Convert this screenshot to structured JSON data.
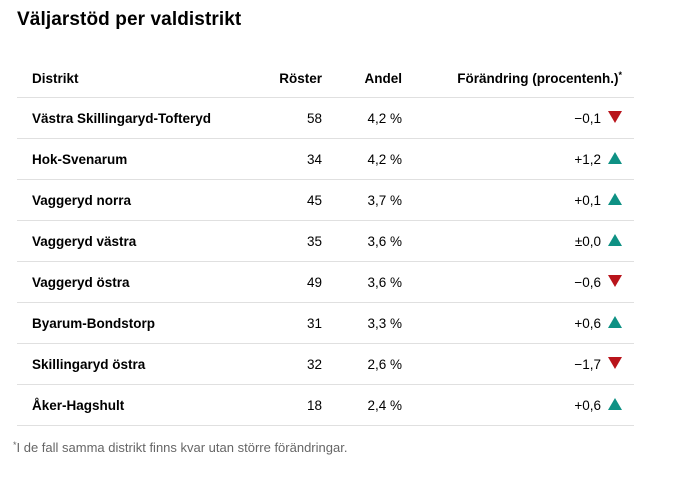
{
  "title": "Väljarstöd per valdistrikt",
  "table": {
    "headers": {
      "district": "Distrikt",
      "votes": "Röster",
      "share": "Andel",
      "change": "Förändring (procentenh.)",
      "change_note_mark": "*"
    },
    "rows": [
      {
        "district": "Västra Skillingaryd-Tofteryd",
        "votes": "58",
        "share": "4,2 %",
        "change": "−0,1",
        "direction": "down"
      },
      {
        "district": "Hok-Svenarum",
        "votes": "34",
        "share": "4,2 %",
        "change": "+1,2",
        "direction": "up"
      },
      {
        "district": "Vaggeryd norra",
        "votes": "45",
        "share": "3,7 %",
        "change": "+0,1",
        "direction": "up"
      },
      {
        "district": "Vaggeryd västra",
        "votes": "35",
        "share": "3,6 %",
        "change": "±0,0",
        "direction": "up"
      },
      {
        "district": "Vaggeryd östra",
        "votes": "49",
        "share": "3,6 %",
        "change": "−0,6",
        "direction": "down"
      },
      {
        "district": "Byarum-Bondstorp",
        "votes": "31",
        "share": "3,3 %",
        "change": "+0,6",
        "direction": "up"
      },
      {
        "district": "Skillingaryd östra",
        "votes": "32",
        "share": "2,6 %",
        "change": "−1,7",
        "direction": "down"
      },
      {
        "district": "Åker-Hagshult",
        "votes": "18",
        "share": "2,4 %",
        "change": "+0,6",
        "direction": "up"
      }
    ]
  },
  "footnote": {
    "mark": "*",
    "text": "I de fall samma distrikt finns kvar utan större förändringar."
  },
  "colors": {
    "up": "#0e9184",
    "down": "#b9141b",
    "divider": "#e0e0e0",
    "footnote_text": "#666666"
  },
  "chart_data": {
    "type": "table",
    "title": "Väljarstöd per valdistrikt",
    "columns": [
      "Distrikt",
      "Röster",
      "Andel",
      "Förändring (procentenh.)"
    ],
    "rows": [
      [
        "Västra Skillingaryd-Tofteryd",
        58,
        "4,2 %",
        "−0,1"
      ],
      [
        "Hok-Svenarum",
        34,
        "4,2 %",
        "+1,2"
      ],
      [
        "Vaggeryd norra",
        45,
        "3,7 %",
        "+0,1"
      ],
      [
        "Vaggeryd västra",
        35,
        "3,6 %",
        "±0,0"
      ],
      [
        "Vaggeryd östra",
        49,
        "3,6 %",
        "−0,6"
      ],
      [
        "Byarum-Bondstorp",
        31,
        "3,3 %",
        "+0,6"
      ],
      [
        "Skillingaryd östra",
        32,
        "2,6 %",
        "−1,7"
      ],
      [
        "Åker-Hagshult",
        18,
        "2,4 %",
        "+0,6"
      ]
    ]
  }
}
